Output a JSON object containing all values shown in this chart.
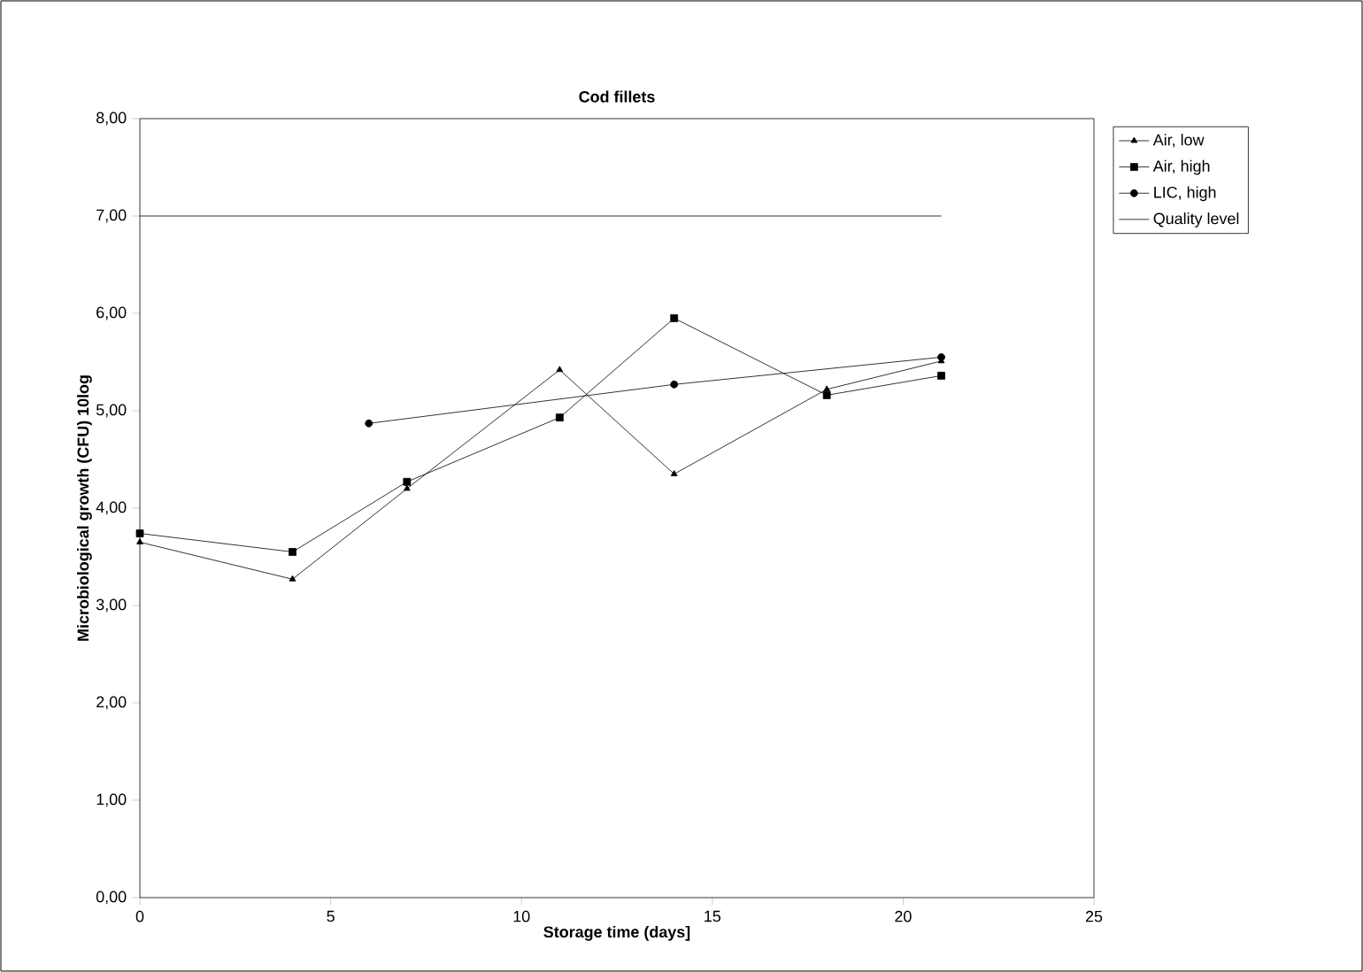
{
  "chart_data": {
    "type": "line",
    "title": "Cod fillets",
    "xlabel": "Storage time (days]",
    "ylabel": "Microbiological growth (CFU) 10log",
    "xlim": [
      0,
      25
    ],
    "xticks": [
      0,
      5,
      10,
      15,
      20,
      25
    ],
    "ylim": [
      0,
      8
    ],
    "yticks": [
      {
        "value": 0,
        "label": "0,00"
      },
      {
        "value": 1,
        "label": "1,00"
      },
      {
        "value": 2,
        "label": "2,00"
      },
      {
        "value": 3,
        "label": "3,00"
      },
      {
        "value": 4,
        "label": "4,00"
      },
      {
        "value": 5,
        "label": "5,00"
      },
      {
        "value": 6,
        "label": "6,00"
      },
      {
        "value": 7,
        "label": "7,00"
      },
      {
        "value": 8,
        "label": "8,00"
      }
    ],
    "grid": false,
    "legend": "right",
    "series": [
      {
        "name": "Air, low",
        "color": "#000000",
        "marker": "triangle",
        "x": [
          0,
          4,
          7,
          11,
          14,
          18,
          21
        ],
        "values": [
          3.65,
          3.27,
          4.2,
          5.42,
          4.35,
          5.22,
          5.51
        ]
      },
      {
        "name": "Air, high",
        "color": "#000000",
        "marker": "square",
        "x": [
          0,
          4,
          7,
          11,
          14,
          18,
          21
        ],
        "values": [
          3.74,
          3.55,
          4.27,
          4.93,
          5.95,
          5.16,
          5.36
        ]
      },
      {
        "name": "LIC, high",
        "color": "#000000",
        "marker": "circle",
        "x": [
          6,
          14,
          21
        ],
        "values": [
          4.87,
          5.27,
          5.55
        ]
      },
      {
        "name": "Quality level",
        "color": "#000000",
        "marker": "none",
        "x": [
          0,
          21
        ],
        "values": [
          7,
          7
        ]
      }
    ]
  }
}
